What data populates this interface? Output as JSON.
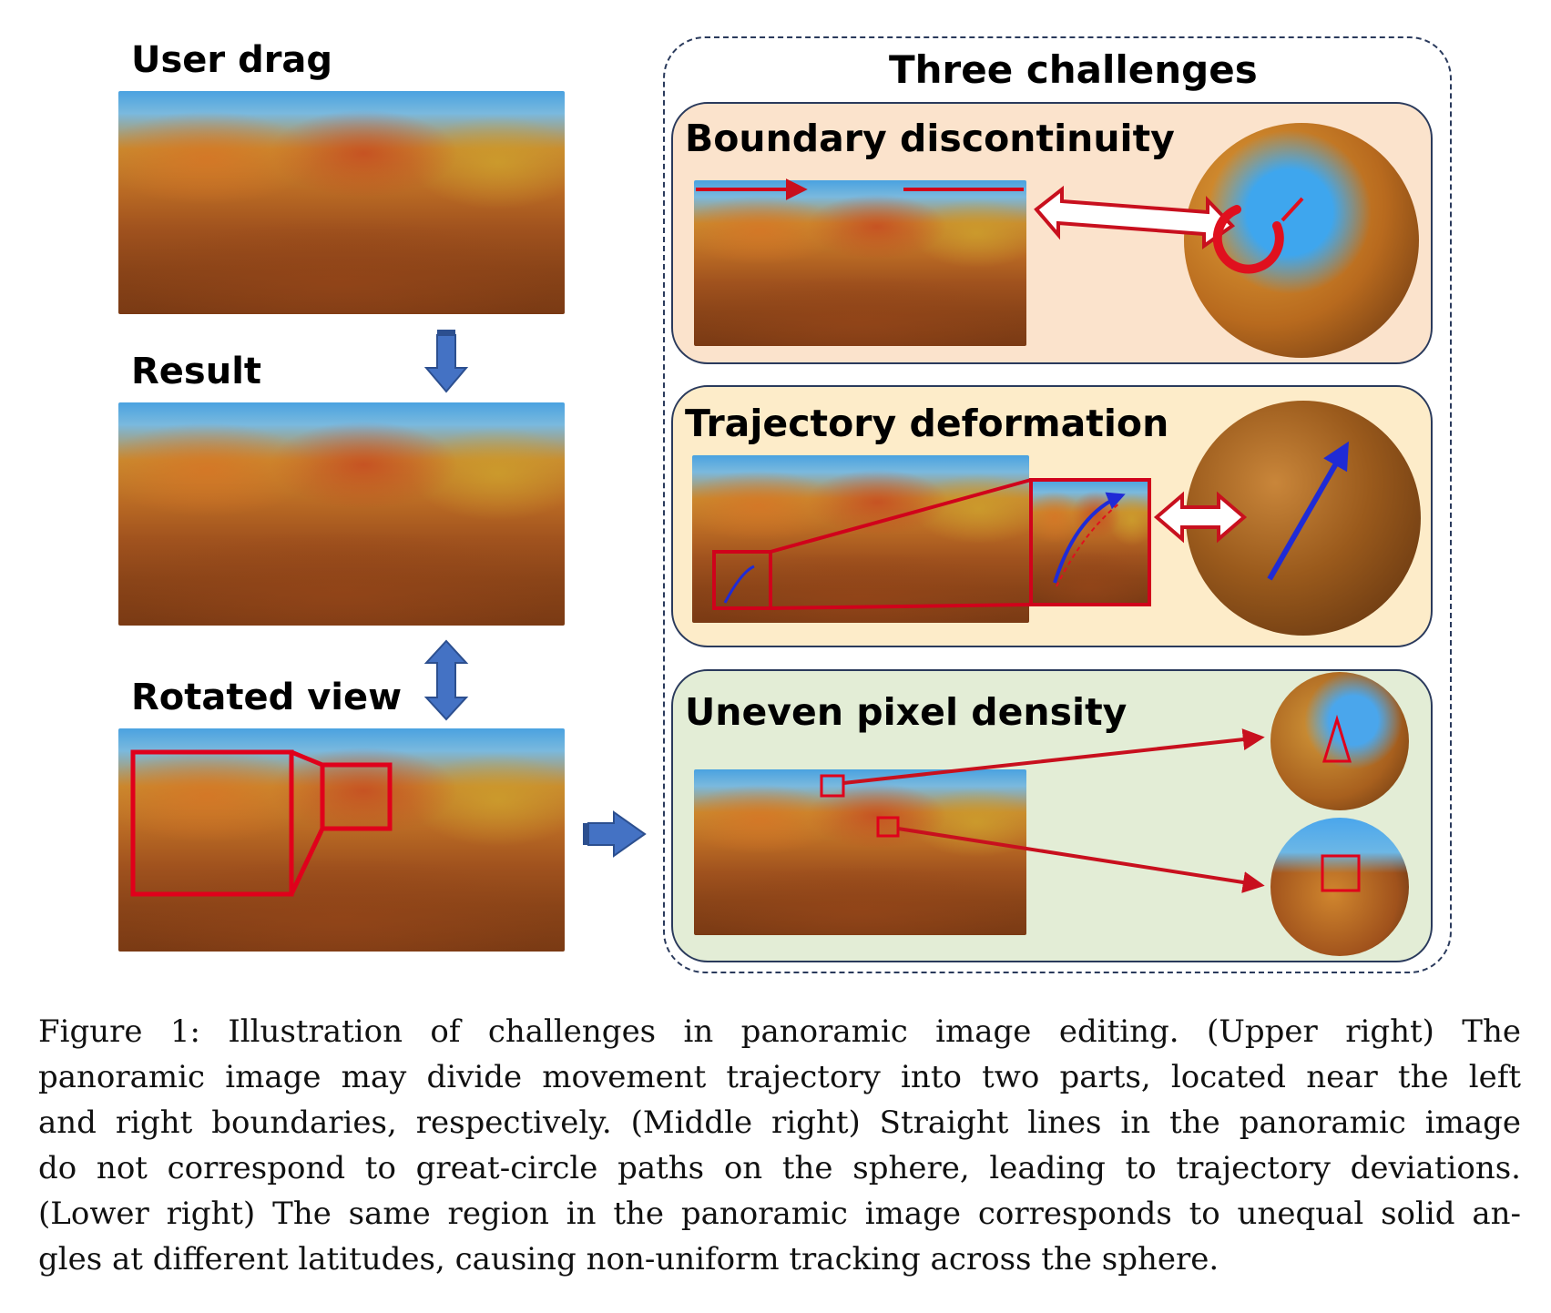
{
  "figure": {
    "left_column": {
      "user_drag_label": "User drag",
      "result_label": "Result",
      "rotated_view_label": "Rotated view"
    },
    "right_panel": {
      "title": "Three challenges",
      "boundary_label": "Boundary discontinuity",
      "trajectory_label": "Trajectory deformation",
      "density_label": "Uneven pixel density"
    },
    "colors": {
      "arrow_blue": "#4472c4",
      "highlight_red": "#d0021b",
      "trajectory_blue": "#1f2bd6",
      "card_boundary": "#fbe3cc",
      "card_trajectory": "#fdecc9",
      "card_density": "#e3edd6"
    }
  },
  "caption": {
    "lines": [
      "Figure 1: Illustration of challenges in panoramic image editing. (Upper right) The",
      "panoramic image may divide movement trajectory into two parts, located near the left",
      "and right boundaries, respectively. (Middle right) Straight lines in the panoramic image",
      "do not correspond to great-circle paths on the sphere, leading to trajectory deviations.",
      "(Lower right) The same region in the panoramic image corresponds to unequal solid an-",
      "gles at different latitudes, causing non-uniform tracking across the sphere."
    ]
  }
}
